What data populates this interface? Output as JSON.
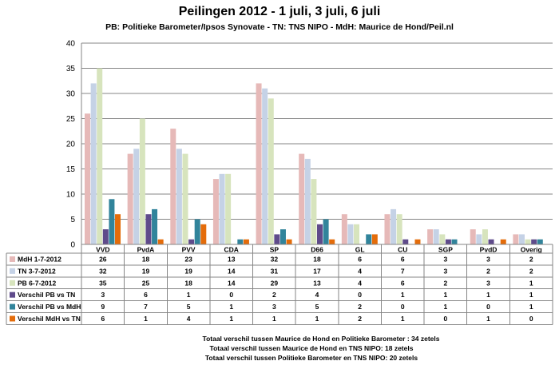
{
  "chart_data": {
    "type": "bar",
    "title": "Peilingen 2012 - 1 juli, 3 juli, 6 juli",
    "subtitle": "PB: Politieke Barometer/Ipsos Synovate - TN: TNS NIPO - MdH: Maurice de Hond/Peil.nl",
    "categories": [
      "VVD",
      "PvdA",
      "PVV",
      "CDA",
      "SP",
      "D66",
      "GL",
      "CU",
      "SGP",
      "PvdD",
      "Overig"
    ],
    "ylim": [
      0,
      40
    ],
    "yticks": [
      0,
      5,
      10,
      15,
      20,
      25,
      30,
      35,
      40
    ],
    "grid": true,
    "legend": "table-below",
    "series": [
      {
        "name": "MdH 1-7-2012",
        "color": "#e6b9b8",
        "values": [
          26,
          18,
          23,
          13,
          32,
          18,
          6,
          6,
          3,
          3,
          2
        ]
      },
      {
        "name": "TN 3-7-2012",
        "color": "#c5d2e6",
        "values": [
          32,
          19,
          19,
          14,
          31,
          17,
          4,
          7,
          3,
          2,
          2
        ]
      },
      {
        "name": "PB 6-7-2012",
        "color": "#d7e4bd",
        "values": [
          35,
          25,
          18,
          14,
          29,
          13,
          4,
          6,
          2,
          3,
          1
        ]
      },
      {
        "name": "Verschil PB vs TN",
        "color": "#5f4b8b",
        "values": [
          3,
          6,
          1,
          0,
          2,
          4,
          0,
          1,
          1,
          1,
          1
        ]
      },
      {
        "name": "Verschil PB vs MdH",
        "color": "#31849b",
        "values": [
          9,
          7,
          5,
          1,
          3,
          5,
          2,
          0,
          1,
          0,
          1
        ]
      },
      {
        "name": "Verschil MdH vs TN",
        "color": "#e46c0a",
        "values": [
          6,
          1,
          4,
          1,
          1,
          1,
          2,
          1,
          0,
          1,
          0
        ]
      }
    ]
  },
  "footnotes": {
    "line1": "Totaal verschil tussen Maurice de Hond en Politieke Barometer : 34 zetels",
    "line2": "Totaal verschil tussen Maurice de Hond en TNS NIPO: 18 zetels",
    "line3": "Totaal verschil tussen Politieke Barometer en TNS NIPO: 20 zetels"
  }
}
